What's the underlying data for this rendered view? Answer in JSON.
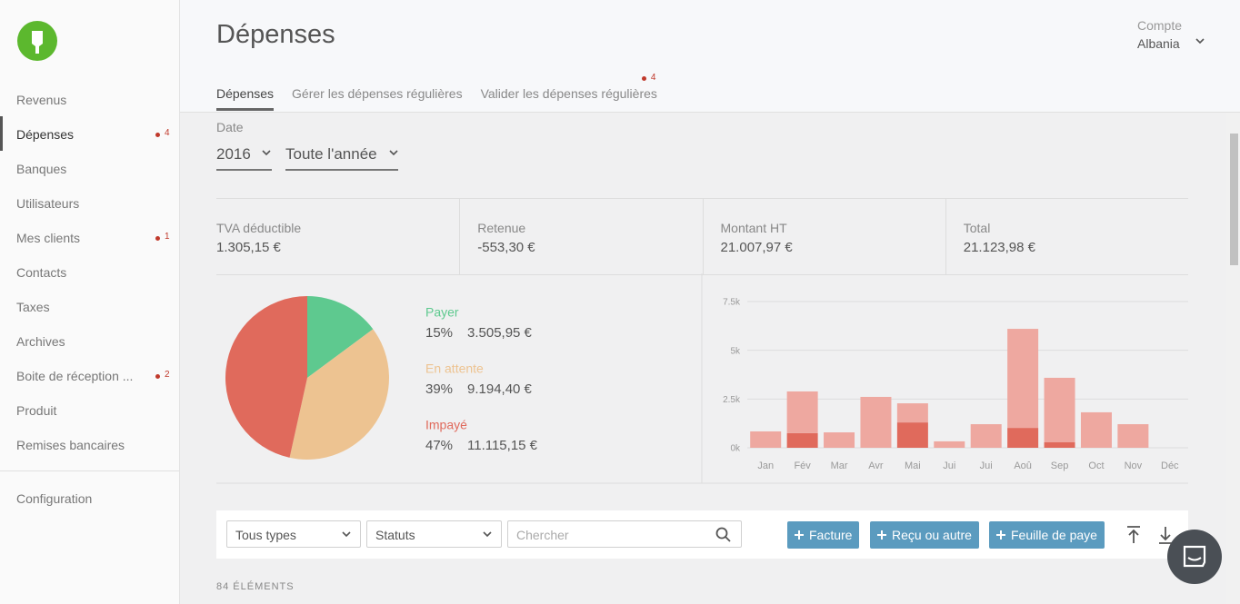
{
  "sidebar": {
    "items": [
      {
        "label": "Revenus"
      },
      {
        "label": "Dépenses",
        "badge": "4",
        "active": true
      },
      {
        "label": "Banques"
      },
      {
        "label": "Utilisateurs"
      },
      {
        "label": "Mes clients",
        "badge": "1"
      },
      {
        "label": "Contacts"
      },
      {
        "label": "Taxes"
      },
      {
        "label": "Archives"
      },
      {
        "label": "Boite de réception ...",
        "badge": "2"
      },
      {
        "label": "Produit"
      },
      {
        "label": "Remises bancaires"
      }
    ],
    "footer": "Configuration"
  },
  "header": {
    "title": "Dépenses",
    "account_label": "Compte",
    "account": "Albania"
  },
  "tabs": [
    {
      "label": "Dépenses",
      "active": true
    },
    {
      "label": "Gérer les dépenses régulières"
    },
    {
      "label": "Valider les dépenses régulières",
      "badge": "4"
    }
  ],
  "filters": {
    "label": "Date",
    "year": "2016",
    "period": "Toute l'année"
  },
  "stats": [
    {
      "label": "TVA déductible",
      "value": "1.305,15 €"
    },
    {
      "label": "Retenue",
      "value": "-553,30 €"
    },
    {
      "label": "Montant HT",
      "value": "21.007,97 €"
    },
    {
      "label": "Total",
      "value": "21.123,98 €"
    }
  ],
  "chart_data": [
    {
      "type": "pie",
      "categories": [
        "Payer",
        "En attente",
        "Impayé"
      ],
      "values": [
        15,
        39,
        47
      ],
      "value_labels": [
        "15%",
        "39%",
        "47%"
      ],
      "amount_labels": [
        "3.505,95 €",
        "9.194,40 €",
        "11.115,15 €"
      ],
      "colors": [
        "#5ec98f",
        "#edc391",
        "#e06a5c"
      ]
    },
    {
      "type": "bar",
      "stacked": true,
      "categories": [
        "Jan",
        "Fév",
        "Mar",
        "Avr",
        "Mai",
        "Jui",
        "Jui",
        "Aoû",
        "Sep",
        "Oct",
        "Nov",
        "Déc"
      ],
      "series": [
        {
          "color": "#e06a5c",
          "values": [
            0,
            750,
            0,
            0,
            1300,
            0,
            0,
            1020,
            280,
            0,
            0,
            0
          ]
        },
        {
          "color": "#eea8a0",
          "values": [
            840,
            2140,
            790,
            2610,
            980,
            330,
            1210,
            5080,
            3310,
            1820,
            1210,
            0
          ]
        }
      ],
      "ylim": [
        0,
        7500
      ],
      "yticks": [
        {
          "value": 0,
          "label": "0k"
        },
        {
          "value": 2500,
          "label": "2.5k"
        },
        {
          "value": 5000,
          "label": "5k"
        },
        {
          "value": 7500,
          "label": "7.5k"
        }
      ],
      "grid": true
    }
  ],
  "toolbar": {
    "type_select": "Tous types",
    "status_select": "Statuts",
    "search_placeholder": "Chercher",
    "buttons": [
      "Facture",
      "Reçu ou autre",
      "Feuille de paye"
    ]
  },
  "count": "84 ÉLÉMENTS"
}
